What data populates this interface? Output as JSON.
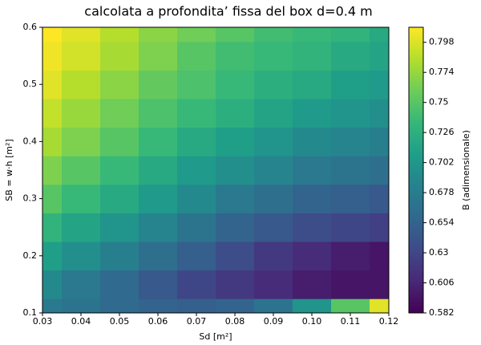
{
  "chart_data": {
    "type": "contour",
    "title": "calcolata a profondita’ fissa del box d=0.4 m",
    "xlabel": "Sd [m²]",
    "ylabel": "SB = w·h [m²]",
    "colorbar_label": "B (adimensionale)",
    "colormap": "viridis",
    "x": [
      0.03,
      0.04,
      0.05,
      0.06,
      0.07,
      0.08,
      0.09,
      0.1,
      0.11,
      0.12
    ],
    "y": [
      0.1,
      0.15,
      0.2,
      0.25,
      0.3,
      0.35,
      0.4,
      0.45,
      0.5,
      0.55,
      0.6
    ],
    "z": [
      [
        0.675,
        0.67,
        0.66,
        0.655,
        0.65,
        0.655,
        0.67,
        0.7,
        0.75,
        0.8
      ],
      [
        0.69,
        0.675,
        0.66,
        0.645,
        0.63,
        0.62,
        0.61,
        0.6,
        0.595,
        0.595
      ],
      [
        0.71,
        0.695,
        0.68,
        0.665,
        0.65,
        0.635,
        0.62,
        0.61,
        0.6,
        0.595
      ],
      [
        0.73,
        0.715,
        0.7,
        0.685,
        0.67,
        0.655,
        0.645,
        0.635,
        0.63,
        0.625
      ],
      [
        0.75,
        0.735,
        0.72,
        0.705,
        0.69,
        0.675,
        0.665,
        0.655,
        0.65,
        0.645
      ],
      [
        0.765,
        0.75,
        0.735,
        0.72,
        0.705,
        0.695,
        0.685,
        0.675,
        0.67,
        0.665
      ],
      [
        0.78,
        0.765,
        0.75,
        0.735,
        0.72,
        0.71,
        0.7,
        0.69,
        0.685,
        0.68
      ],
      [
        0.79,
        0.775,
        0.76,
        0.745,
        0.735,
        0.725,
        0.715,
        0.705,
        0.7,
        0.695
      ],
      [
        0.8,
        0.785,
        0.77,
        0.755,
        0.745,
        0.735,
        0.725,
        0.72,
        0.71,
        0.705
      ],
      [
        0.805,
        0.795,
        0.78,
        0.765,
        0.75,
        0.74,
        0.735,
        0.73,
        0.72,
        0.715
      ],
      [
        0.81,
        0.8,
        0.785,
        0.77,
        0.76,
        0.75,
        0.74,
        0.735,
        0.73,
        0.72
      ]
    ],
    "xlim": [
      0.03,
      0.12
    ],
    "ylim": [
      0.1,
      0.6
    ],
    "zlim": [
      0.582,
      0.81
    ],
    "xticks": [
      0.03,
      0.04,
      0.05,
      0.06,
      0.07,
      0.08,
      0.09,
      {
        "value": 0.1,
        "label": "0.10"
      },
      0.11,
      0.12
    ],
    "yticks": [
      0.1,
      0.2,
      0.3,
      0.4,
      0.5,
      0.6
    ],
    "zticks": [
      0.582,
      0.606,
      0.63,
      0.654,
      0.678,
      0.702,
      0.726,
      0.75,
      0.774,
      0.798
    ]
  }
}
